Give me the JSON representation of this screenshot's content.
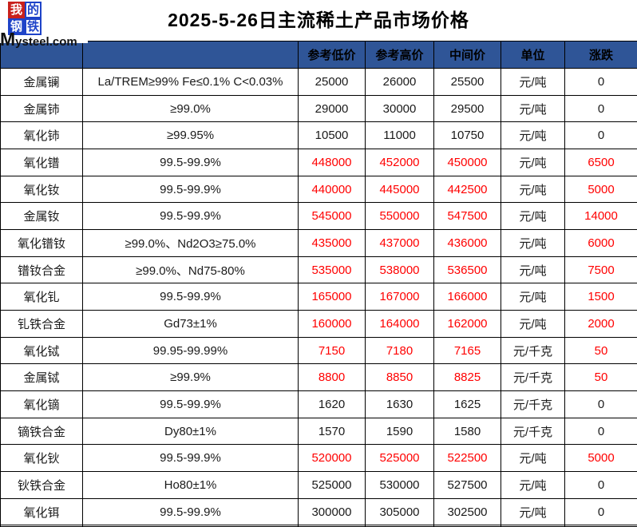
{
  "logo": {
    "grid_chars": [
      "我",
      "的",
      "钢",
      "铁"
    ],
    "domain": "Mysteel.com",
    "red": "#c9211c",
    "blue": "#1e43c8"
  },
  "title": "2025-5-26日主流稀土产品市场价格",
  "colors": {
    "header_bg": "#2F5597",
    "price_up": "#FF0000",
    "border": "#000000"
  },
  "table": {
    "headers": [
      "",
      "",
      "参考低价",
      "参考高价",
      "中间价",
      "单位",
      "涨跌"
    ],
    "rows": [
      {
        "name": "金属镧",
        "spec": "La/TREM≥99% Fe≤0.1% C<0.03%",
        "low": "25000",
        "high": "26000",
        "mid": "25500",
        "unit": "元/吨",
        "change": "0",
        "up": false
      },
      {
        "name": "金属铈",
        "spec": "≥99.0%",
        "low": "29000",
        "high": "30000",
        "mid": "29500",
        "unit": "元/吨",
        "change": "0",
        "up": false
      },
      {
        "name": "氧化铈",
        "spec": "≥99.95%",
        "low": "10500",
        "high": "11000",
        "mid": "10750",
        "unit": "元/吨",
        "change": "0",
        "up": false
      },
      {
        "name": "氧化镨",
        "spec": "99.5-99.9%",
        "low": "448000",
        "high": "452000",
        "mid": "450000",
        "unit": "元/吨",
        "change": "6500",
        "up": true
      },
      {
        "name": "氧化钕",
        "spec": "99.5-99.9%",
        "low": "440000",
        "high": "445000",
        "mid": "442500",
        "unit": "元/吨",
        "change": "5000",
        "up": true
      },
      {
        "name": "金属钕",
        "spec": "99.5-99.9%",
        "low": "545000",
        "high": "550000",
        "mid": "547500",
        "unit": "元/吨",
        "change": "14000",
        "up": true
      },
      {
        "name": "氧化镨钕",
        "spec": "≥99.0%、Nd2O3≥75.0%",
        "low": "435000",
        "high": "437000",
        "mid": "436000",
        "unit": "元/吨",
        "change": "6000",
        "up": true
      },
      {
        "name": "镨钕合金",
        "spec": "≥99.0%、Nd75-80%",
        "low": "535000",
        "high": "538000",
        "mid": "536500",
        "unit": "元/吨",
        "change": "7500",
        "up": true
      },
      {
        "name": "氧化钆",
        "spec": "99.5-99.9%",
        "low": "165000",
        "high": "167000",
        "mid": "166000",
        "unit": "元/吨",
        "change": "1500",
        "up": true
      },
      {
        "name": "钆铁合金",
        "spec": "Gd73±1%",
        "low": "160000",
        "high": "164000",
        "mid": "162000",
        "unit": "元/吨",
        "change": "2000",
        "up": true
      },
      {
        "name": "氧化铽",
        "spec": "99.95-99.99%",
        "low": "7150",
        "high": "7180",
        "mid": "7165",
        "unit": "元/千克",
        "change": "50",
        "up": true
      },
      {
        "name": "金属铽",
        "spec": "≥99.9%",
        "low": "8800",
        "high": "8850",
        "mid": "8825",
        "unit": "元/千克",
        "change": "50",
        "up": true
      },
      {
        "name": "氧化镝",
        "spec": "99.5-99.9%",
        "low": "1620",
        "high": "1630",
        "mid": "1625",
        "unit": "元/千克",
        "change": "0",
        "up": false
      },
      {
        "name": "镝铁合金",
        "spec": "Dy80±1%",
        "low": "1570",
        "high": "1590",
        "mid": "1580",
        "unit": "元/千克",
        "change": "0",
        "up": false
      },
      {
        "name": "氧化钬",
        "spec": "99.5-99.9%",
        "low": "520000",
        "high": "525000",
        "mid": "522500",
        "unit": "元/吨",
        "change": "5000",
        "up": true
      },
      {
        "name": "钬铁合金",
        "spec": "Ho80±1%",
        "low": "525000",
        "high": "530000",
        "mid": "527500",
        "unit": "元/吨",
        "change": "0",
        "up": false
      },
      {
        "name": "氧化铒",
        "spec": "99.5-99.9%",
        "low": "300000",
        "high": "305000",
        "mid": "302500",
        "unit": "元/吨",
        "change": "0",
        "up": false
      },
      {
        "name": "",
        "spec": "",
        "low": "",
        "high": "",
        "mid": "",
        "unit": "",
        "change": "",
        "up": false
      }
    ]
  }
}
